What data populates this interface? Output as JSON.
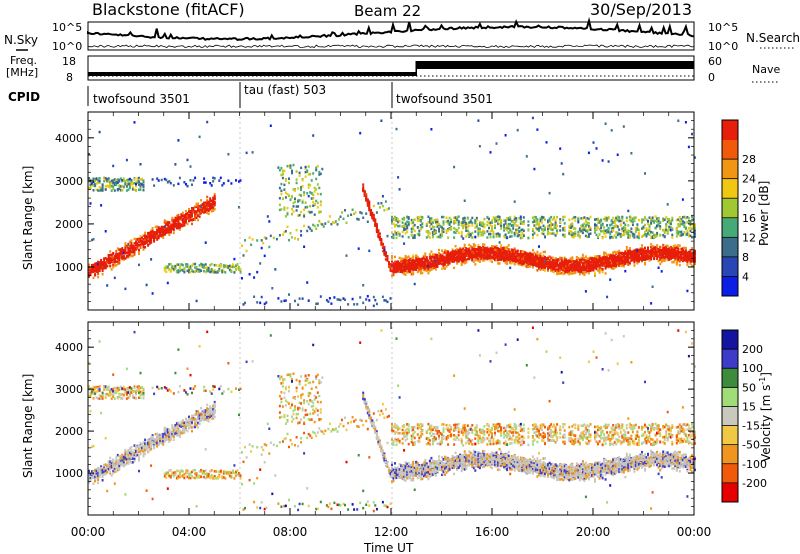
{
  "header": {
    "station": "Blackstone (fitACF)",
    "beam": "Beam 22",
    "date": "30/Sep/2013"
  },
  "chart_data": [
    {
      "type": "line",
      "panel": "noise",
      "left_label": "N.Sky",
      "right_label": "N.Search",
      "left_ticks": [
        "10^5",
        "10^0"
      ],
      "right_ticks": [
        "10^5",
        "10^0"
      ],
      "x_range_hours": [
        0,
        24
      ]
    },
    {
      "type": "line",
      "panel": "freq-nave",
      "left_label": "Freq.",
      "left_unit": "[MHz]",
      "right_label": "Nave",
      "left_ticks": [
        "18",
        "8"
      ],
      "right_ticks": [
        "60",
        "0"
      ],
      "x_range_hours": [
        0,
        24
      ]
    },
    {
      "type": "table",
      "panel": "cpid",
      "label": "CPID",
      "segments": [
        {
          "start": 0,
          "end": 6,
          "text": "twofsound 3501"
        },
        {
          "start": 6,
          "end": 12,
          "text": "tau (fast) 503"
        },
        {
          "start": 12,
          "end": 24,
          "text": "twofsound 3501"
        }
      ]
    },
    {
      "type": "heatmap",
      "panel": "power",
      "ylabel": "Slant Range [km]",
      "ylim": [
        0,
        4600
      ],
      "yticks": [
        1000,
        2000,
        3000,
        4000
      ],
      "x_range_hours": [
        0,
        24
      ],
      "colorbar_label": "Power [dB]",
      "colorbar_ticks": [
        "4",
        "8",
        "12",
        "16",
        "20",
        "24",
        "28"
      ],
      "colors": [
        "#0a1ee6",
        "#2846b4",
        "#3c6e8c",
        "#46aa78",
        "#a0c832",
        "#f0c814",
        "#f09614",
        "#f05a0a",
        "#e61e0a"
      ]
    },
    {
      "type": "heatmap",
      "panel": "velocity",
      "ylabel": "Slant Range [km]",
      "ylim": [
        0,
        4600
      ],
      "yticks": [
        1000,
        2000,
        3000,
        4000
      ],
      "x_range_hours": [
        0,
        24
      ],
      "xlabel": "Time UT",
      "xticks": [
        "00:00",
        "04:00",
        "08:00",
        "12:00",
        "16:00",
        "20:00",
        "00:00"
      ],
      "colorbar_label": "Velocity [m s",
      "colorbar_label_sup": "-1",
      "colorbar_label_end": "]",
      "colorbar_ticks": [
        "-200",
        "-100",
        "-50",
        "-15",
        "15",
        "50",
        "100",
        "200"
      ],
      "colors": [
        "#e60000",
        "#f05a0a",
        "#f0961e",
        "#f0c846",
        "#c8c8be",
        "#a0dc78",
        "#3c8c3c",
        "#3c3cc8",
        "#1414a0"
      ]
    }
  ]
}
